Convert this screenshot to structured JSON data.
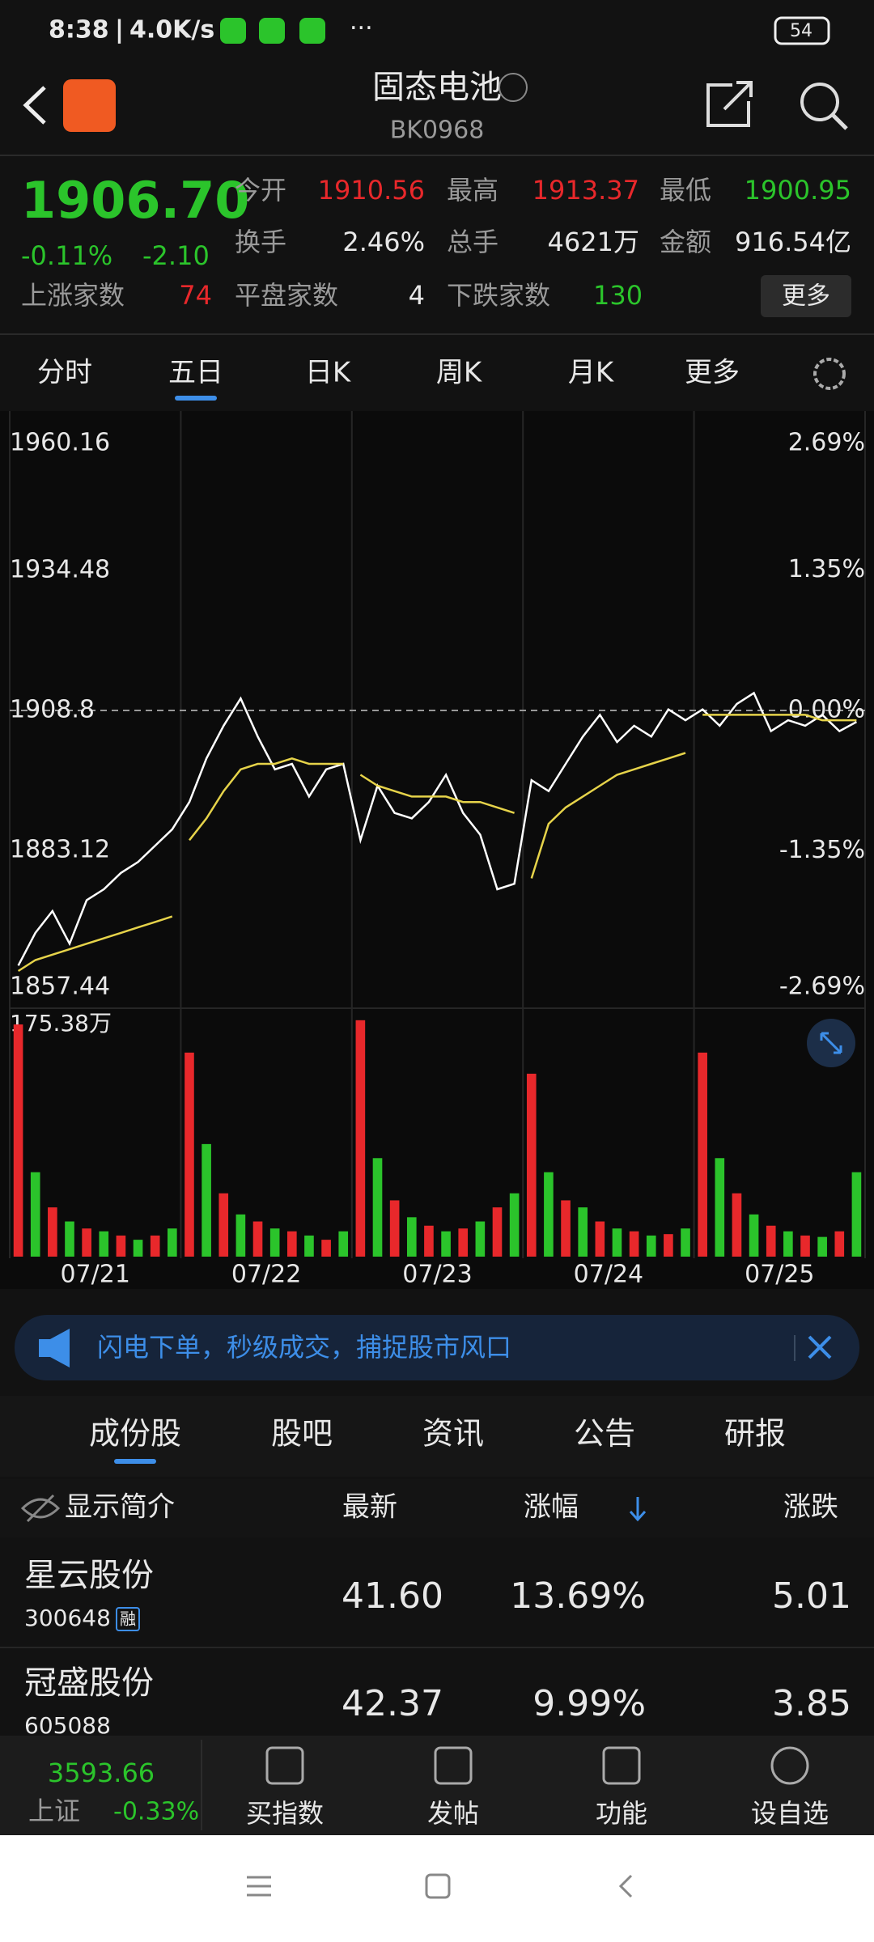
{
  "status": {
    "time": "8:38",
    "speed": "4.0K/s",
    "battery": "54"
  },
  "header": {
    "title": "固态电池",
    "code": "BK0968"
  },
  "quote": {
    "price": "1906.70",
    "change_pct": "-0.11%",
    "change": "-2.10",
    "open_label": "今开",
    "open": "1910.56",
    "high_label": "最高",
    "high": "1913.37",
    "low_label": "最低",
    "low": "1900.95",
    "turnover_label": "换手",
    "turnover": "2.46%",
    "volume_label": "总手",
    "volume": "4621万",
    "amount_label": "金额",
    "amount": "916.54亿",
    "up_label": "上涨家数",
    "up": "74",
    "flat_label": "平盘家数",
    "flat": "4",
    "down_label": "下跌家数",
    "down": "130",
    "more": "更多"
  },
  "tabs": {
    "items": [
      "分时",
      "五日",
      "日K",
      "周K",
      "月K",
      "更多"
    ],
    "active": 1
  },
  "chart_data": [
    {
      "type": "line",
      "days": [
        "07/21",
        "07/22",
        "07/23",
        "07/24",
        "07/25"
      ],
      "ylim": [
        1857.44,
        1960.16
      ],
      "yticks": [
        1960.16,
        1934.48,
        1908.8,
        1883.12,
        1857.44
      ],
      "y2lim": [
        -2.69,
        2.69
      ],
      "y2ticks": [
        {
          "value": 2.69,
          "label": "2.69%"
        },
        {
          "value": 1.35,
          "label": "1.35%"
        },
        {
          "value": 0,
          "label": "0.00%"
        },
        {
          "value": -1.35,
          "label": "-1.35%"
        },
        {
          "value": -2.69,
          "label": "-2.69%"
        }
      ],
      "series": [
        {
          "color": "#ffffff",
          "values": [
            1862,
            1868,
            1872,
            1866,
            1874,
            1876,
            1879,
            1881,
            1884,
            1887,
            1892,
            1900,
            1906,
            1911,
            1904,
            1898,
            1899,
            1893,
            1898,
            1899,
            1885,
            1895,
            1890,
            1889,
            1892,
            1897,
            1890,
            1886,
            1876,
            1877,
            1896,
            1894,
            1899,
            1904,
            1908,
            1903,
            1906,
            1904,
            1909,
            1907,
            1909,
            1906,
            1910,
            1912,
            1905,
            1907,
            1906,
            1908,
            1905,
            1906.7
          ]
        },
        {
          "color": "#e6d34a",
          "values": [
            1861,
            1863,
            1864,
            1865,
            1866,
            1867,
            1868,
            1869,
            1870,
            1871,
            1885,
            1889,
            1894,
            1898,
            1899,
            1899,
            1900,
            1899,
            1899,
            1899,
            1897,
            1895,
            1894,
            1893,
            1893,
            1893,
            1892,
            1892,
            1891,
            1890,
            1878,
            1888,
            1891,
            1893,
            1895,
            1897,
            1898,
            1899,
            1900,
            1901,
            1908,
            1908,
            1908,
            1908,
            1908,
            1908,
            1908,
            1907,
            1907,
            1907
          ]
        }
      ]
    },
    {
      "type": "bar",
      "ylim": [
        0,
        175.38
      ],
      "yticks": [
        {
          "value": 175.38,
          "label": "175.38万"
        }
      ],
      "series": [
        {
          "color": "#e8282b",
          "values": [
            165,
            null,
            35,
            null,
            20,
            null,
            15,
            null,
            15,
            null,
            145,
            null,
            45,
            null,
            25,
            null,
            18,
            null,
            12,
            null,
            168,
            null,
            40,
            null,
            22,
            null,
            20,
            null,
            35,
            null,
            130,
            null,
            40,
            null,
            25,
            null,
            18,
            null,
            16,
            null,
            145,
            null,
            45,
            null,
            22,
            null,
            15,
            null,
            18,
            null
          ]
        },
        {
          "color": "#2bc42b",
          "values": [
            null,
            60,
            null,
            25,
            null,
            18,
            null,
            12,
            null,
            20,
            null,
            80,
            null,
            30,
            null,
            20,
            null,
            15,
            null,
            18,
            null,
            70,
            null,
            28,
            null,
            18,
            null,
            25,
            null,
            45,
            null,
            60,
            null,
            35,
            null,
            20,
            null,
            15,
            null,
            20,
            null,
            70,
            null,
            30,
            null,
            18,
            null,
            14,
            null,
            60
          ]
        }
      ]
    }
  ],
  "banner": {
    "text": "闪电下单，秒级成交，捕捉股市风口"
  },
  "sub_tabs": {
    "items": [
      "成份股",
      "股吧",
      "资讯",
      "公告",
      "研报"
    ],
    "active": 0
  },
  "table": {
    "header": [
      "显示简介",
      "最新",
      "涨幅",
      "涨跌"
    ],
    "rows": [
      {
        "name": "星云股份",
        "code": "300648",
        "tag": "融",
        "price": "41.60",
        "pct": "13.69%",
        "chg": "5.01"
      },
      {
        "name": "冠盛股份",
        "code": "605088",
        "price": "42.37",
        "pct": "9.99%",
        "chg": "3.85"
      }
    ]
  },
  "bottom": {
    "index_value": "3593.66",
    "index_name": "上证",
    "index_pct": "-0.33%",
    "items": [
      "买指数",
      "发帖",
      "功能",
      "设自选"
    ]
  }
}
